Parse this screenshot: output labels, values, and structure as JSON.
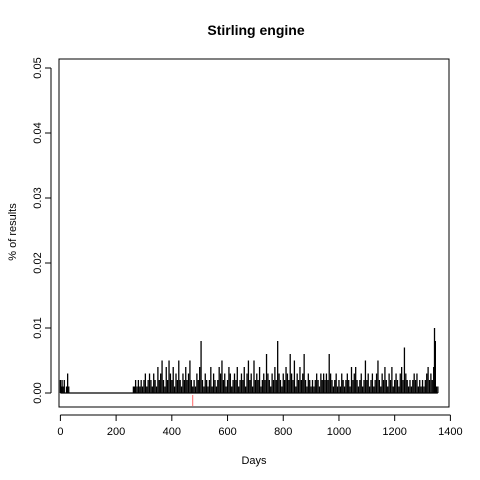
{
  "chart_data": {
    "type": "bar",
    "title": "Stirling engine",
    "xlabel": "Days",
    "ylabel": "% of results",
    "xlim": [
      -5,
      1395
    ],
    "ylim": [
      0,
      0.05
    ],
    "xticks": [
      0,
      200,
      400,
      600,
      800,
      1000,
      1200,
      1400
    ],
    "xtick_labels": [
      "0",
      "200",
      "400",
      "600",
      "800",
      "1000",
      "1200",
      "1400"
    ],
    "yticks": [
      0,
      0.01,
      0.02,
      0.03,
      0.04,
      0.05
    ],
    "ytick_labels": [
      "0.00",
      "0.01",
      "0.02",
      "0.03",
      "0.04",
      "0.05"
    ],
    "grid": false,
    "bar_color": "#000000",
    "marker": {
      "x": 475,
      "color": "#ff6666"
    },
    "series": [
      {
        "values": [
          [
            0,
            0.002
          ],
          [
            3,
            0.001
          ],
          [
            6,
            0.002
          ],
          [
            10,
            0.001
          ],
          [
            14,
            0.002
          ],
          [
            22,
            0.001
          ],
          [
            26,
            0.003
          ],
          [
            30,
            0.001
          ],
          [
            262,
            0.001
          ],
          [
            266,
            0.001
          ],
          [
            270,
            0.002
          ],
          [
            275,
            0.001
          ],
          [
            280,
            0.002
          ],
          [
            285,
            0.001
          ],
          [
            290,
            0.002
          ],
          [
            295,
            0.001
          ],
          [
            300,
            0.002
          ],
          [
            305,
            0.003
          ],
          [
            310,
            0.001
          ],
          [
            315,
            0.002
          ],
          [
            320,
            0.003
          ],
          [
            325,
            0.002
          ],
          [
            330,
            0.001
          ],
          [
            335,
            0.003
          ],
          [
            340,
            0.002
          ],
          [
            345,
            0.001
          ],
          [
            350,
            0.004
          ],
          [
            355,
            0.002
          ],
          [
            360,
            0.003
          ],
          [
            365,
            0.005
          ],
          [
            370,
            0.002
          ],
          [
            375,
            0.001
          ],
          [
            380,
            0.004
          ],
          [
            385,
            0.002
          ],
          [
            390,
            0.005
          ],
          [
            395,
            0.003
          ],
          [
            400,
            0.002
          ],
          [
            405,
            0.004
          ],
          [
            410,
            0.001
          ],
          [
            415,
            0.003
          ],
          [
            420,
            0.002
          ],
          [
            425,
            0.005
          ],
          [
            430,
            0.002
          ],
          [
            435,
            0.001
          ],
          [
            440,
            0.003
          ],
          [
            445,
            0.002
          ],
          [
            450,
            0.004
          ],
          [
            455,
            0.002
          ],
          [
            460,
            0.003
          ],
          [
            465,
            0.005
          ],
          [
            470,
            0.002
          ],
          [
            475,
            0.001
          ],
          [
            480,
            0.002
          ],
          [
            485,
            0.001
          ],
          [
            490,
            0.003
          ],
          [
            495,
            0.002
          ],
          [
            500,
            0.004
          ],
          [
            505,
            0.008
          ],
          [
            510,
            0.002
          ],
          [
            515,
            0.001
          ],
          [
            520,
            0.003
          ],
          [
            525,
            0.002
          ],
          [
            530,
            0.001
          ],
          [
            535,
            0.002
          ],
          [
            540,
            0.004
          ],
          [
            545,
            0.001
          ],
          [
            550,
            0.003
          ],
          [
            555,
            0.002
          ],
          [
            560,
            0.001
          ],
          [
            565,
            0.002
          ],
          [
            570,
            0.004
          ],
          [
            575,
            0.003
          ],
          [
            580,
            0.005
          ],
          [
            585,
            0.002
          ],
          [
            590,
            0.003
          ],
          [
            595,
            0.001
          ],
          [
            600,
            0.002
          ],
          [
            605,
            0.004
          ],
          [
            610,
            0.003
          ],
          [
            615,
            0.001
          ],
          [
            620,
            0.002
          ],
          [
            625,
            0.003
          ],
          [
            630,
            0.002
          ],
          [
            635,
            0.004
          ],
          [
            640,
            0.001
          ],
          [
            645,
            0.002
          ],
          [
            650,
            0.003
          ],
          [
            655,
            0.002
          ],
          [
            660,
            0.004
          ],
          [
            665,
            0.001
          ],
          [
            670,
            0.003
          ],
          [
            675,
            0.005
          ],
          [
            680,
            0.002
          ],
          [
            685,
            0.003
          ],
          [
            690,
            0.001
          ],
          [
            695,
            0.005
          ],
          [
            700,
            0.002
          ],
          [
            705,
            0.003
          ],
          [
            710,
            0.002
          ],
          [
            715,
            0.004
          ],
          [
            720,
            0.001
          ],
          [
            725,
            0.002
          ],
          [
            730,
            0.003
          ],
          [
            735,
            0.002
          ],
          [
            740,
            0.006
          ],
          [
            745,
            0.003
          ],
          [
            750,
            0.002
          ],
          [
            755,
            0.001
          ],
          [
            760,
            0.003
          ],
          [
            765,
            0.002
          ],
          [
            770,
            0.004
          ],
          [
            775,
            0.002
          ],
          [
            780,
            0.008
          ],
          [
            785,
            0.003
          ],
          [
            790,
            0.002
          ],
          [
            795,
            0.001
          ],
          [
            800,
            0.003
          ],
          [
            805,
            0.002
          ],
          [
            810,
            0.004
          ],
          [
            815,
            0.003
          ],
          [
            820,
            0.002
          ],
          [
            825,
            0.006
          ],
          [
            830,
            0.003
          ],
          [
            835,
            0.002
          ],
          [
            840,
            0.005
          ],
          [
            845,
            0.001
          ],
          [
            850,
            0.003
          ],
          [
            855,
            0.002
          ],
          [
            860,
            0.004
          ],
          [
            865,
            0.002
          ],
          [
            870,
            0.003
          ],
          [
            875,
            0.006
          ],
          [
            880,
            0.002
          ],
          [
            885,
            0.001
          ],
          [
            890,
            0.003
          ],
          [
            895,
            0.002
          ],
          [
            900,
            0.001
          ],
          [
            905,
            0.002
          ],
          [
            910,
            0.001
          ],
          [
            915,
            0.002
          ],
          [
            920,
            0.003
          ],
          [
            925,
            0.002
          ],
          [
            930,
            0.001
          ],
          [
            935,
            0.003
          ],
          [
            940,
            0.002
          ],
          [
            945,
            0.003
          ],
          [
            950,
            0.002
          ],
          [
            955,
            0.003
          ],
          [
            960,
            0.002
          ],
          [
            965,
            0.006
          ],
          [
            970,
            0.003
          ],
          [
            975,
            0.002
          ],
          [
            980,
            0.001
          ],
          [
            985,
            0.002
          ],
          [
            990,
            0.003
          ],
          [
            995,
            0.001
          ],
          [
            1000,
            0.002
          ],
          [
            1005,
            0.001
          ],
          [
            1010,
            0.003
          ],
          [
            1015,
            0.002
          ],
          [
            1020,
            0.001
          ],
          [
            1025,
            0.002
          ],
          [
            1030,
            0.003
          ],
          [
            1035,
            0.002
          ],
          [
            1040,
            0.001
          ],
          [
            1045,
            0.004
          ],
          [
            1050,
            0.002
          ],
          [
            1055,
            0.003
          ],
          [
            1060,
            0.004
          ],
          [
            1065,
            0.002
          ],
          [
            1070,
            0.001
          ],
          [
            1075,
            0.002
          ],
          [
            1080,
            0.003
          ],
          [
            1085,
            0.001
          ],
          [
            1090,
            0.002
          ],
          [
            1095,
            0.005
          ],
          [
            1100,
            0.002
          ],
          [
            1105,
            0.003
          ],
          [
            1110,
            0.001
          ],
          [
            1115,
            0.002
          ],
          [
            1120,
            0.003
          ],
          [
            1125,
            0.001
          ],
          [
            1130,
            0.002
          ],
          [
            1135,
            0.003
          ],
          [
            1140,
            0.005
          ],
          [
            1145,
            0.002
          ],
          [
            1150,
            0.001
          ],
          [
            1155,
            0.003
          ],
          [
            1160,
            0.002
          ],
          [
            1165,
            0.004
          ],
          [
            1170,
            0.002
          ],
          [
            1175,
            0.001
          ],
          [
            1180,
            0.003
          ],
          [
            1185,
            0.002
          ],
          [
            1190,
            0.004
          ],
          [
            1195,
            0.001
          ],
          [
            1200,
            0.002
          ],
          [
            1205,
            0.003
          ],
          [
            1210,
            0.002
          ],
          [
            1215,
            0.001
          ],
          [
            1220,
            0.003
          ],
          [
            1225,
            0.004
          ],
          [
            1230,
            0.002
          ],
          [
            1235,
            0.007
          ],
          [
            1240,
            0.003
          ],
          [
            1245,
            0.002
          ],
          [
            1250,
            0.001
          ],
          [
            1255,
            0.002
          ],
          [
            1260,
            0.001
          ],
          [
            1265,
            0.002
          ],
          [
            1270,
            0.003
          ],
          [
            1275,
            0.002
          ],
          [
            1280,
            0.003
          ],
          [
            1285,
            0.001
          ],
          [
            1290,
            0.002
          ],
          [
            1295,
            0.001
          ],
          [
            1300,
            0.002
          ],
          [
            1305,
            0.001
          ],
          [
            1310,
            0.002
          ],
          [
            1315,
            0.003
          ],
          [
            1320,
            0.004
          ],
          [
            1325,
            0.002
          ],
          [
            1330,
            0.003
          ],
          [
            1335,
            0.002
          ],
          [
            1340,
            0.004
          ],
          [
            1343,
            0.01
          ],
          [
            1346,
            0.008
          ],
          [
            1350,
            0.001
          ],
          [
            1355,
            0.001
          ]
        ]
      }
    ]
  }
}
